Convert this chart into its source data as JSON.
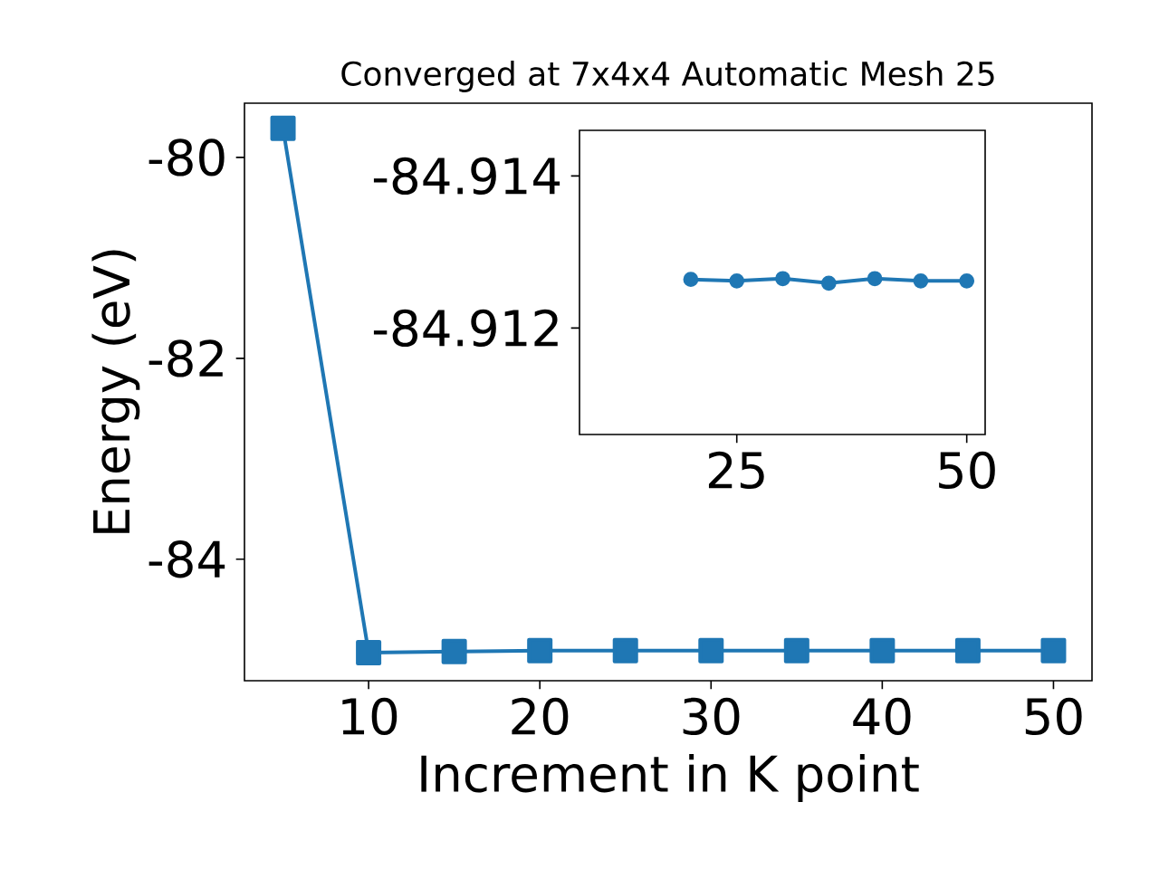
{
  "chart_data": [
    {
      "type": "line",
      "title": "Converged at 7x4x4 Automatic Mesh 25",
      "xlabel": "Increment in K point",
      "ylabel": "Energy (eV)",
      "x": [
        5,
        10,
        15,
        20,
        25,
        30,
        35,
        40,
        45,
        50
      ],
      "series": [
        {
          "color": "#1f77b4",
          "values": [
            -79.71,
            -84.93,
            -84.92,
            -84.91,
            -84.91,
            -84.91,
            -84.91,
            -84.91,
            -84.91,
            -84.91
          ]
        }
      ],
      "xlim": [
        2.75,
        52.25
      ],
      "ylim": [
        -85.21,
        -79.46
      ],
      "xticks": [
        10,
        20,
        30,
        40,
        50
      ],
      "yticks": [
        -84,
        -82,
        -80
      ],
      "marker": "square",
      "line_style": "solid"
    },
    {
      "type": "line",
      "x": [
        20,
        25,
        30,
        35,
        40,
        45,
        50
      ],
      "series": [
        {
          "color": "#1f77b4",
          "values": [
            -84.91264,
            -84.91262,
            -84.91265,
            -84.91259,
            -84.91265,
            -84.91262,
            -84.91262
          ]
        }
      ],
      "xlim": [
        7.9,
        52
      ],
      "ylim": [
        -84.9106,
        -84.9146
      ],
      "xticks": [
        25,
        50
      ],
      "yticks": [
        -84.914,
        -84.912
      ],
      "marker": "circle",
      "line_style": "solid"
    }
  ]
}
